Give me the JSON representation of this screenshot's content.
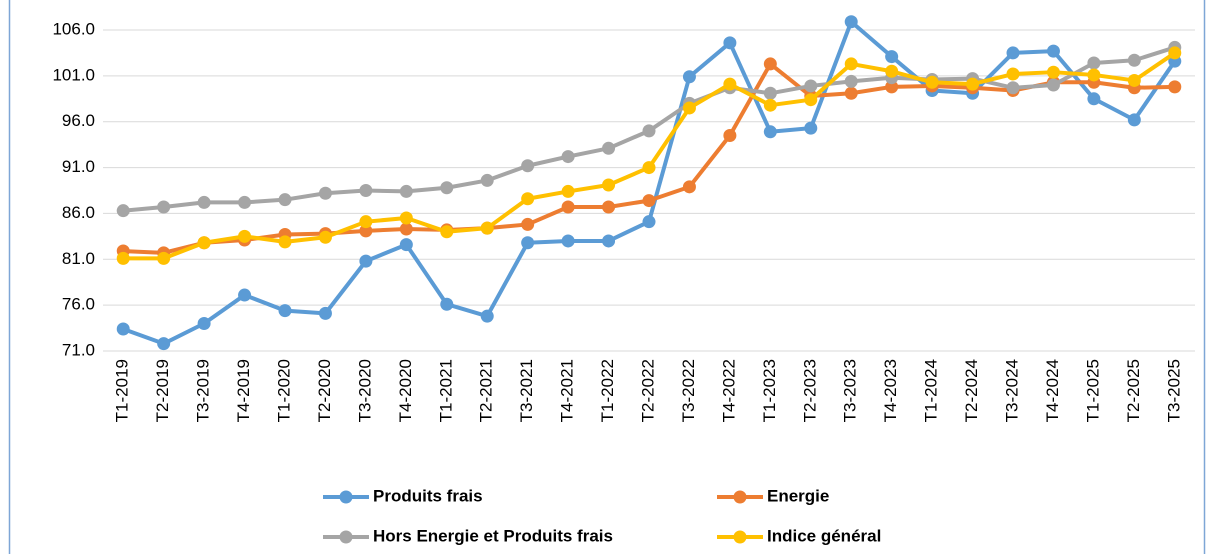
{
  "chart_data": {
    "type": "line",
    "categories": [
      "T1-2019",
      "T2-2019",
      "T3-2019",
      "T4-2019",
      "T1-2020",
      "T2-2020",
      "T3-2020",
      "T4-2020",
      "T1-2021",
      "T2-2021",
      "T3-2021",
      "T4-2021",
      "T1-2022",
      "T2-2022",
      "T3-2022",
      "T4-2022",
      "T1-2023",
      "T2-2023",
      "T3-2023",
      "T4-2023",
      "T1-2024",
      "T2-2024",
      "T3-2024",
      "T4-2024",
      "T1-2025",
      "T2-2025",
      "T3-2025"
    ],
    "series": [
      {
        "name": "Produits frais",
        "color": "#5b9bd5",
        "values": [
          73.4,
          71.8,
          74.0,
          77.1,
          75.4,
          75.1,
          80.8,
          82.6,
          76.1,
          74.8,
          82.8,
          83.0,
          83.0,
          85.1,
          100.9,
          104.6,
          94.9,
          95.3,
          106.9,
          103.1,
          99.4,
          99.1,
          103.5,
          103.7,
          98.5,
          96.2,
          102.6
        ]
      },
      {
        "name": "Energie",
        "color": "#ed7d31",
        "values": [
          81.9,
          81.7,
          82.8,
          83.1,
          83.7,
          83.8,
          84.1,
          84.3,
          84.2,
          84.4,
          84.8,
          86.7,
          86.7,
          87.4,
          88.9,
          94.5,
          102.3,
          98.8,
          99.1,
          99.8,
          99.9,
          99.7,
          99.4,
          100.3,
          100.3,
          99.7,
          99.8
        ]
      },
      {
        "name": "Hors Energie et Produits frais",
        "color": "#a5a5a5",
        "values": [
          86.3,
          86.7,
          87.2,
          87.2,
          87.5,
          88.2,
          88.5,
          88.4,
          88.8,
          89.6,
          91.2,
          92.2,
          93.1,
          95.0,
          98.0,
          99.7,
          99.1,
          99.9,
          100.4,
          100.8,
          100.6,
          100.7,
          99.7,
          100.0,
          102.4,
          102.7,
          104.1
        ]
      },
      {
        "name": "Indice général",
        "color": "#ffc000",
        "values": [
          81.1,
          81.1,
          82.8,
          83.5,
          82.9,
          83.4,
          85.1,
          85.5,
          84.0,
          84.4,
          87.6,
          88.4,
          89.1,
          91.0,
          97.5,
          100.1,
          97.8,
          98.4,
          102.3,
          101.5,
          100.3,
          100.1,
          101.2,
          101.4,
          101.1,
          100.5,
          103.5
        ]
      }
    ],
    "ylim": [
      71,
      106
    ],
    "yticks": [
      {
        "value": 71,
        "label": "71.0"
      },
      {
        "value": 76,
        "label": "76.0"
      },
      {
        "value": 81,
        "label": "81.0"
      },
      {
        "value": 86,
        "label": "86.0"
      },
      {
        "value": 91,
        "label": "91.0"
      },
      {
        "value": 96,
        "label": "96.0"
      },
      {
        "value": 101,
        "label": "101.0"
      },
      {
        "value": 106,
        "label": "106.0"
      }
    ],
    "grid": true,
    "legend": "bottom"
  }
}
